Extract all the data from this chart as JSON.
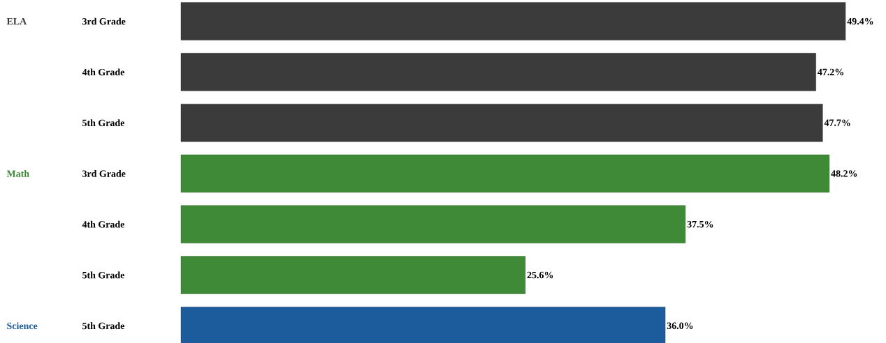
{
  "chart_data": {
    "type": "bar",
    "orientation": "horizontal",
    "categories": [
      "3rd Grade",
      "4th Grade",
      "5th Grade",
      "3rd Grade",
      "4th Grade",
      "5th Grade",
      "5th Grade"
    ],
    "series": [
      {
        "name": "ELA",
        "color": "#3b3b3b",
        "values": [
          49.4,
          47.2,
          47.7,
          null,
          null,
          null,
          null
        ],
        "value_labels": [
          "49.4%",
          "47.2%",
          "47.7%",
          null,
          null,
          null,
          null
        ]
      },
      {
        "name": "Math",
        "color": "#3e8a37",
        "values": [
          null,
          null,
          null,
          48.2,
          37.5,
          25.6,
          null
        ],
        "value_labels": [
          null,
          null,
          null,
          "48.2%",
          "37.5%",
          "25.6%",
          null
        ]
      },
      {
        "name": "Science",
        "color": "#1c5b9c",
        "values": [
          null,
          null,
          null,
          null,
          null,
          null,
          36.0
        ],
        "value_labels": [
          null,
          null,
          null,
          null,
          null,
          null,
          "36.0%"
        ]
      }
    ]
  }
}
